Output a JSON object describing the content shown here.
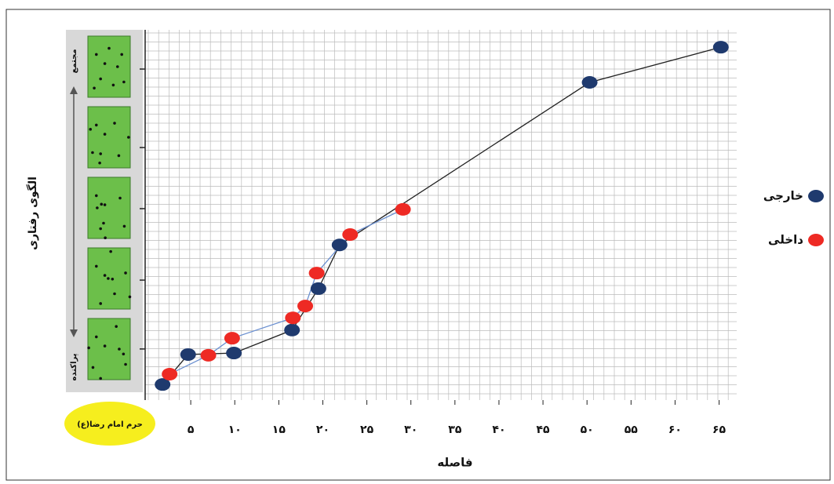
{
  "chart_data": {
    "type": "line",
    "x_label": "فاصله",
    "y_label": "الگوی رفتاری",
    "y_top_label": "مجتمع",
    "y_bottom_label": "پراکنده",
    "origin_label": "حرم امام رضا(ع)",
    "xlim": [
      0,
      67
    ],
    "ylim": [
      0,
      100
    ],
    "xticks": [
      {
        "value": 5,
        "label": "۵"
      },
      {
        "value": 10,
        "label": "۱۰"
      },
      {
        "value": 15,
        "label": "۱۵"
      },
      {
        "value": 20,
        "label": "۲۰"
      },
      {
        "value": 25,
        "label": "۲۵"
      },
      {
        "value": 30,
        "label": "۳۰"
      },
      {
        "value": 35,
        "label": "۳۵"
      },
      {
        "value": 40,
        "label": "۴۰"
      },
      {
        "value": 45,
        "label": "۴۵"
      },
      {
        "value": 50,
        "label": "۵۰"
      },
      {
        "value": 55,
        "label": "۵۵"
      },
      {
        "value": 60,
        "label": "۶۰"
      },
      {
        "value": 65,
        "label": "۶۵"
      }
    ],
    "yticks": [
      13.8,
      32.4,
      51.7,
      68.2,
      89.4
    ],
    "grid": true,
    "series": [
      {
        "name": "خارجی",
        "color": "#1f3a6e",
        "line_color": "#222222",
        "x": [
          1.8,
          4.7,
          9.9,
          16.5,
          19.5,
          21.9,
          50.3,
          65.2
        ],
        "values": [
          4.2,
          12.3,
          12.7,
          18.9,
          30.1,
          41.9,
          85.8,
          95.3
        ]
      },
      {
        "name": "داخلی",
        "color": "#ee2a24",
        "line_color": "#6a8fd0",
        "x": [
          2.6,
          7.0,
          9.7,
          16.6,
          18.0,
          19.3,
          23.1,
          29.1
        ],
        "values": [
          7.0,
          12.1,
          16.7,
          22.2,
          25.4,
          34.3,
          44.7,
          51.5
        ]
      }
    ]
  }
}
